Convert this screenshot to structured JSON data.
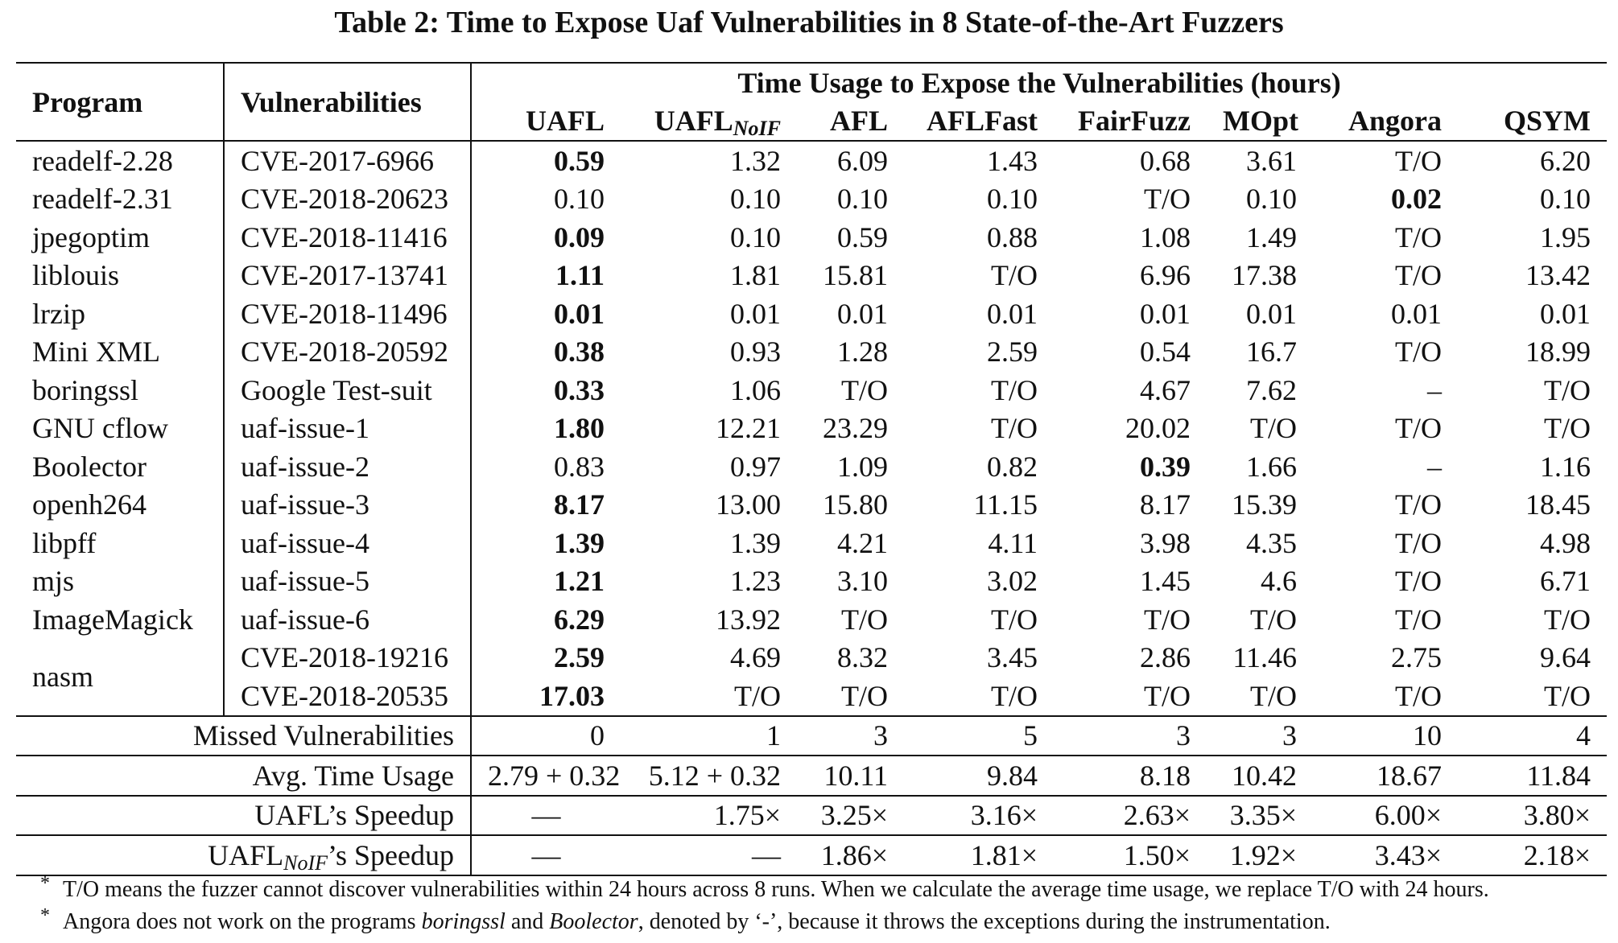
{
  "caption": "Table 2: Time to Expose Uaf Vulnerabilities in 8 State-of-the-Art Fuzzers",
  "header": {
    "program": "Program",
    "vulnerabilities": "Vulnerabilities",
    "group": "Time Usage to Expose the Vulnerabilities (hours)",
    "fuzzers": [
      "UAFL",
      "UAFL",
      "AFL",
      "AFLFast",
      "FairFuzz",
      "MOpt",
      "Angora",
      "QSYM"
    ],
    "noif_sub": "NoIF"
  },
  "rows": [
    {
      "program": "readelf-2.28",
      "vuln": "CVE-2017-6966",
      "values": [
        "0.59",
        "1.32",
        "6.09",
        "1.43",
        "0.68",
        "3.61",
        "T/O",
        "6.20"
      ],
      "bold": [
        0
      ]
    },
    {
      "program": "readelf-2.31",
      "vuln": "CVE-2018-20623",
      "values": [
        "0.10",
        "0.10",
        "0.10",
        "0.10",
        "T/O",
        "0.10",
        "0.02",
        "0.10"
      ],
      "bold": [
        6
      ]
    },
    {
      "program": "jpegoptim",
      "vuln": "CVE-2018-11416",
      "values": [
        "0.09",
        "0.10",
        "0.59",
        "0.88",
        "1.08",
        "1.49",
        "T/O",
        "1.95"
      ],
      "bold": [
        0
      ]
    },
    {
      "program": "liblouis",
      "vuln": "CVE-2017-13741",
      "values": [
        "1.11",
        "1.81",
        "15.81",
        "T/O",
        "6.96",
        "17.38",
        "T/O",
        "13.42"
      ],
      "bold": [
        0
      ]
    },
    {
      "program": "lrzip",
      "vuln": "CVE-2018-11496",
      "values": [
        "0.01",
        "0.01",
        "0.01",
        "0.01",
        "0.01",
        "0.01",
        "0.01",
        "0.01"
      ],
      "bold": [
        0
      ]
    },
    {
      "program": "Mini XML",
      "vuln": "CVE-2018-20592",
      "values": [
        "0.38",
        "0.93",
        "1.28",
        "2.59",
        "0.54",
        "16.7",
        "T/O",
        "18.99"
      ],
      "bold": [
        0
      ]
    },
    {
      "program": "boringssl",
      "vuln": "Google Test-suit",
      "values": [
        "0.33",
        "1.06",
        "T/O",
        "T/O",
        "4.67",
        "7.62",
        "–",
        "T/O"
      ],
      "bold": [
        0
      ]
    },
    {
      "program": "GNU cflow",
      "vuln": "uaf-issue-1",
      "values": [
        "1.80",
        "12.21",
        "23.29",
        "T/O",
        "20.02",
        "T/O",
        "T/O",
        "T/O"
      ],
      "bold": [
        0
      ]
    },
    {
      "program": "Boolector",
      "vuln": "uaf-issue-2",
      "values": [
        "0.83",
        "0.97",
        "1.09",
        "0.82",
        "0.39",
        "1.66",
        "–",
        "1.16"
      ],
      "bold": [
        4
      ]
    },
    {
      "program": "openh264",
      "vuln": "uaf-issue-3",
      "values": [
        "8.17",
        "13.00",
        "15.80",
        "11.15",
        "8.17",
        "15.39",
        "T/O",
        "18.45"
      ],
      "bold": [
        0
      ]
    },
    {
      "program": "libpff",
      "vuln": "uaf-issue-4",
      "values": [
        "1.39",
        "1.39",
        "4.21",
        "4.11",
        "3.98",
        "4.35",
        "T/O",
        "4.98"
      ],
      "bold": [
        0
      ]
    },
    {
      "program": "mjs",
      "vuln": "uaf-issue-5",
      "values": [
        "1.21",
        "1.23",
        "3.10",
        "3.02",
        "1.45",
        "4.6",
        "T/O",
        "6.71"
      ],
      "bold": [
        0
      ]
    },
    {
      "program": "ImageMagick",
      "vuln": "uaf-issue-6",
      "values": [
        "6.29",
        "13.92",
        "T/O",
        "T/O",
        "T/O",
        "T/O",
        "T/O",
        "T/O"
      ],
      "bold": [
        0
      ]
    },
    {
      "program": "nasm",
      "vuln": "CVE-2018-19216",
      "values": [
        "2.59",
        "4.69",
        "8.32",
        "3.45",
        "2.86",
        "11.46",
        "2.75",
        "9.64"
      ],
      "bold": [
        0
      ]
    },
    {
      "program": "",
      "vuln": "CVE-2018-20535",
      "values": [
        "17.03",
        "T/O",
        "T/O",
        "T/O",
        "T/O",
        "T/O",
        "T/O",
        "T/O"
      ],
      "bold": [
        0
      ]
    }
  ],
  "summary": [
    {
      "label": "Missed Vulnerabilities",
      "values": [
        "0",
        "1",
        "3",
        "5",
        "3",
        "3",
        "10",
        "4"
      ]
    },
    {
      "label": "Avg. Time Usage",
      "values": [
        "2.79 + 0.32",
        "5.12 + 0.32",
        "10.11",
        "9.84",
        "8.18",
        "10.42",
        "18.67",
        "11.84"
      ]
    },
    {
      "label": "UAFL’s Speedup",
      "values": [
        "—",
        "1.75×",
        "3.25×",
        "3.16×",
        "2.63×",
        "3.35×",
        "6.00×",
        "3.80×"
      ]
    },
    {
      "label_main": "UAFL",
      "label_sub": "NoIF",
      "label_rest": "’s Speedup",
      "values": [
        "—",
        "—",
        "1.86×",
        "1.81×",
        "1.50×",
        "1.92×",
        "3.43×",
        "2.18×"
      ]
    }
  ],
  "notes": {
    "star": "*",
    "note1": "T/O means the fuzzer cannot discover vulnerabilities within 24 hours across 8 runs. When we calculate the average time usage, we replace T/O with 24 hours.",
    "note2_a": "Angora does not work on the programs ",
    "note2_b": "boringssl",
    "note2_c": " and ",
    "note2_d": "Boolector",
    "note2_e": ", denoted by ‘-’, because it throws the exceptions during the instrumentation."
  }
}
